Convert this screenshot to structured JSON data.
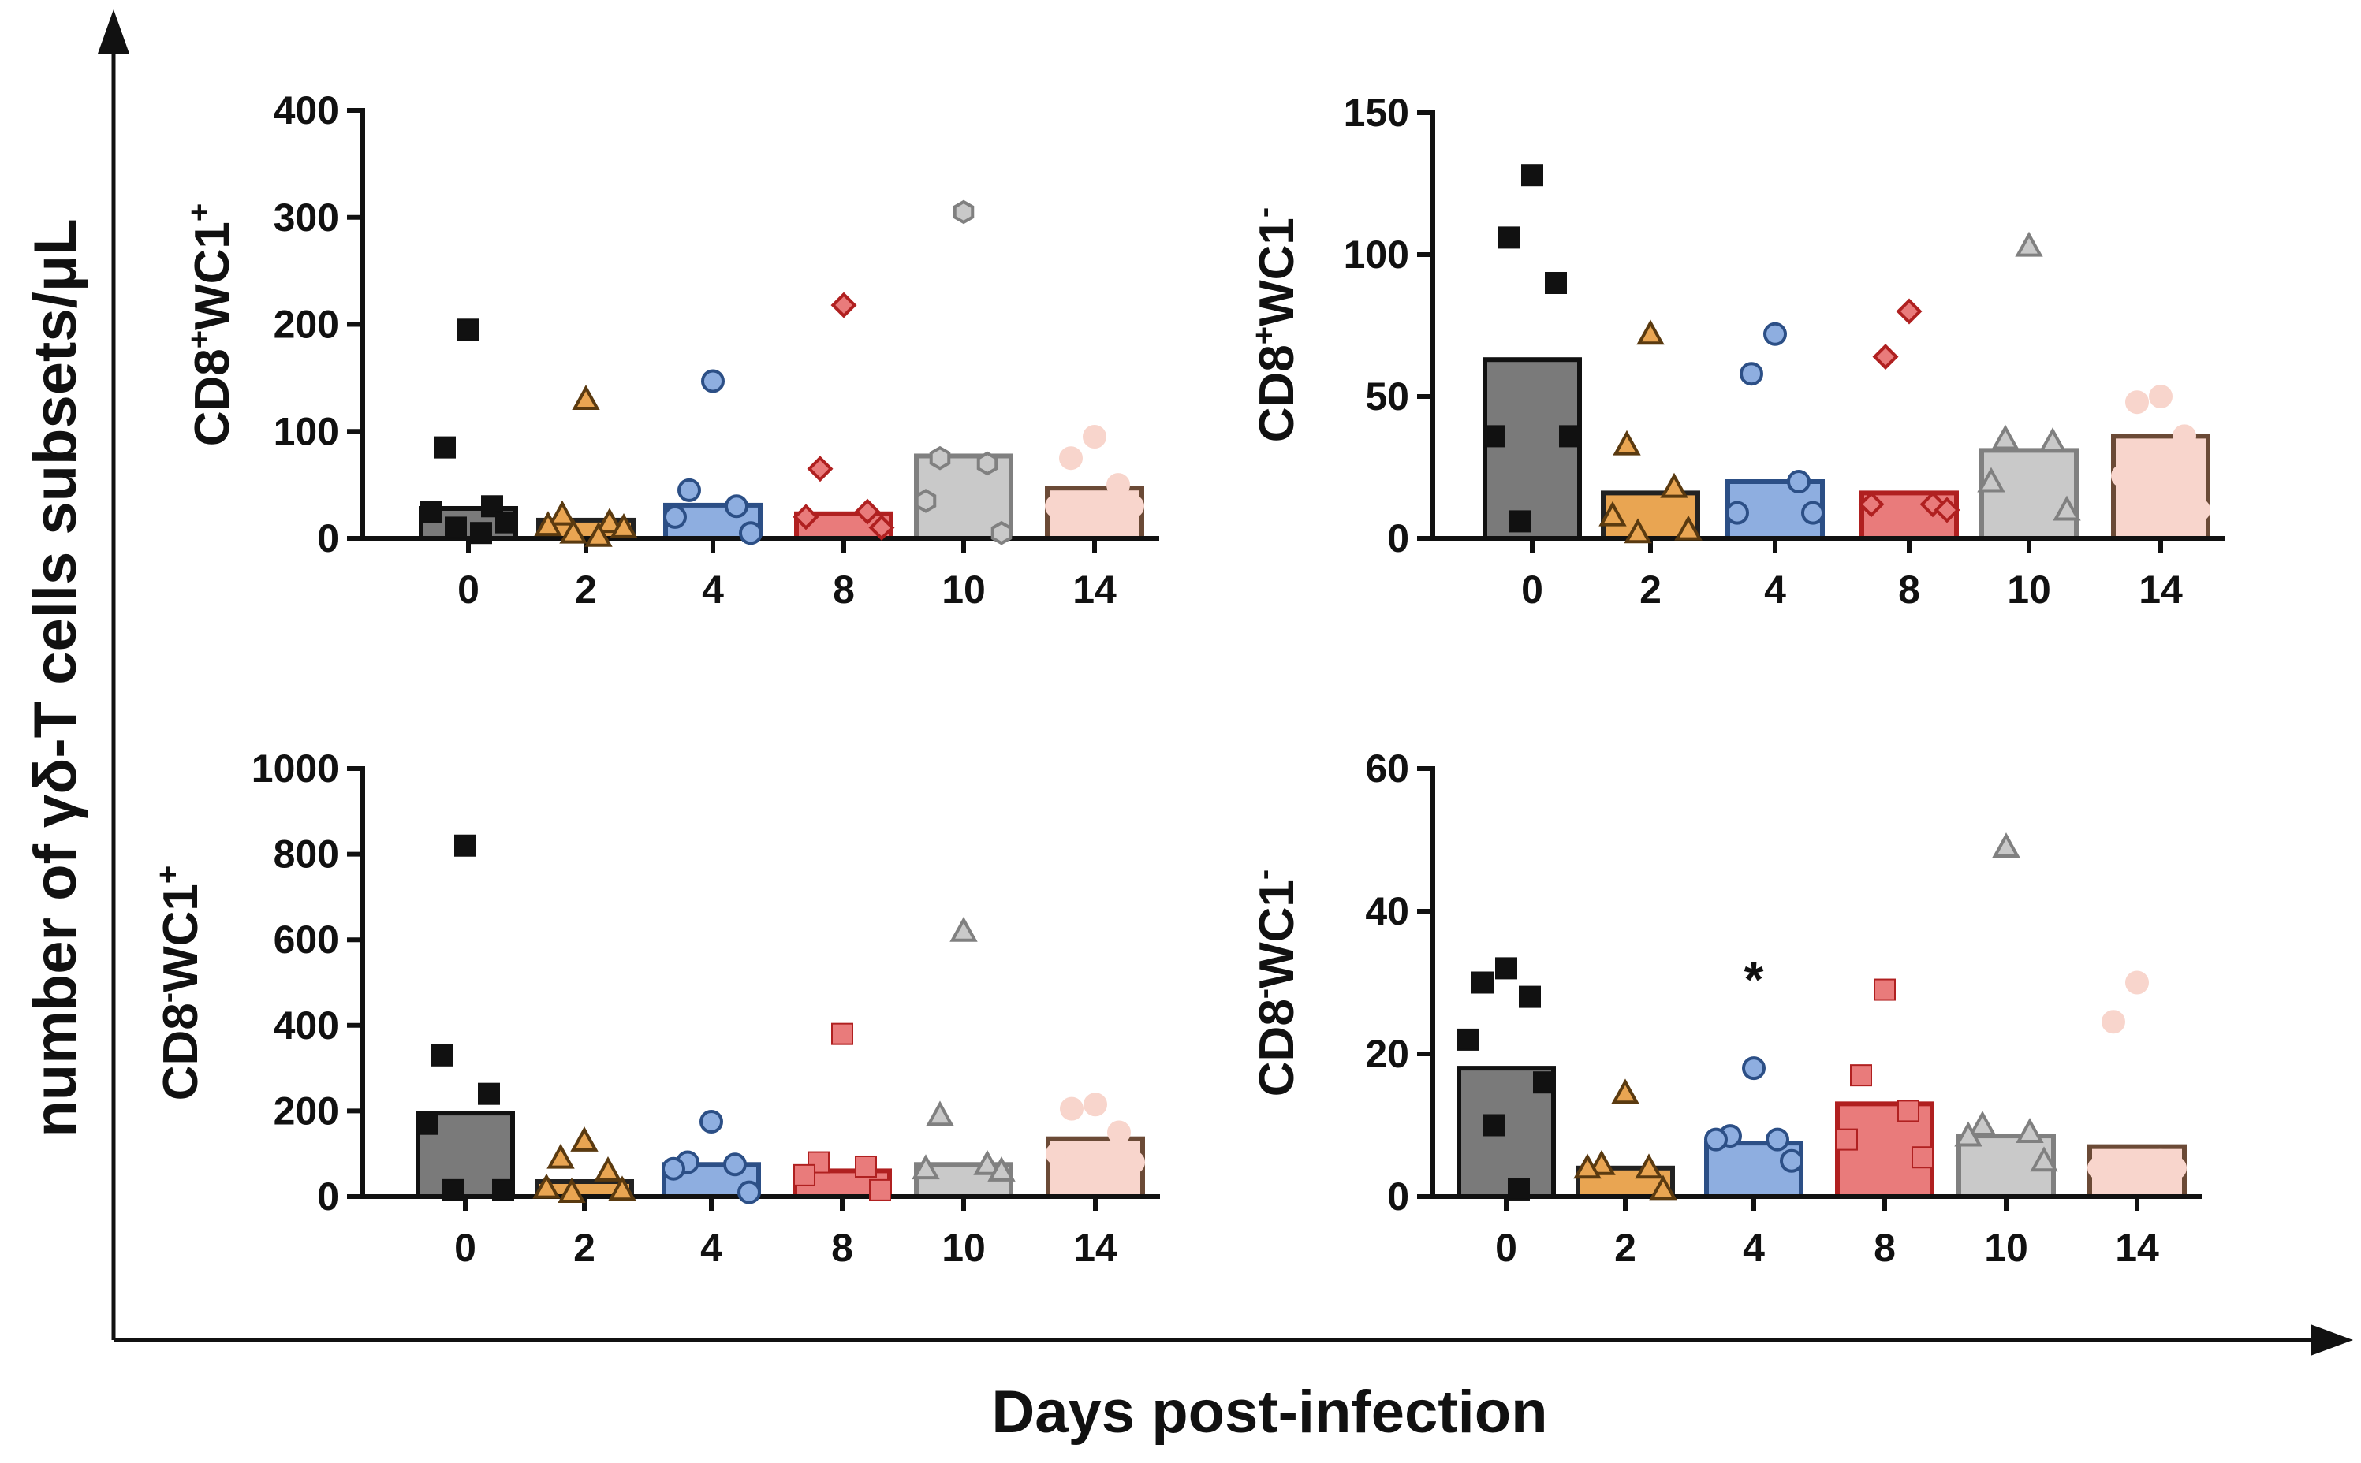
{
  "figure": {
    "y_axis_label": "number of γδ-T cells subsets/μL",
    "x_axis_label": "Days post-infection"
  },
  "group_styles": [
    {
      "day": "0",
      "marker": "square",
      "fill": "#111111",
      "stroke": "#111111",
      "bar_fill": "#7a7a7a",
      "bar_stroke": "#111111"
    },
    {
      "day": "2",
      "marker": "triangle",
      "fill": "#e9a552",
      "stroke": "#5a3a10",
      "bar_fill": "#e9a552",
      "bar_stroke": "#222222"
    },
    {
      "day": "4",
      "marker": "circle",
      "fill": "#8eaee0",
      "stroke": "#2c4f86",
      "bar_fill": "#8eaee0",
      "bar_stroke": "#2c4f86"
    },
    {
      "day": "8",
      "marker": "diamond",
      "fill": "#e97b7b",
      "stroke": "#b02020",
      "bar_fill": "#e97b7b",
      "bar_stroke": "#b02020"
    },
    {
      "day": "10",
      "marker": "hexagon",
      "fill": "#c9c9c9",
      "stroke": "#808080",
      "bar_fill": "#c9c9c9",
      "bar_stroke": "#808080"
    },
    {
      "day": "14",
      "marker": "circle",
      "fill": "#f8d5cc",
      "stroke": "#f8d5cc",
      "bar_fill": "#f8d5cc",
      "bar_stroke": "#6b4a36"
    }
  ],
  "chart_data": [
    {
      "type": "bar",
      "ylabel_base": "CD8",
      "ylabel_sup1": "+",
      "ylabel_mid": "WC1",
      "ylabel_sup2": "+",
      "categories": [
        "0",
        "2",
        "4",
        "8",
        "10",
        "14"
      ],
      "ylim": [
        0,
        400
      ],
      "yticks": [
        0,
        100,
        200,
        300,
        400
      ],
      "means": [
        28,
        17,
        31,
        23,
        77,
        47
      ],
      "points": [
        [
          195,
          85,
          30,
          25,
          15,
          10,
          5
        ],
        [
          130,
          22,
          15,
          12,
          10,
          5,
          2
        ],
        [
          147,
          45,
          30,
          20,
          5
        ],
        [
          218,
          65,
          25,
          20,
          10
        ],
        [
          305,
          75,
          70,
          35,
          5
        ],
        [
          95,
          75,
          50,
          30,
          30
        ]
      ],
      "markers": [
        "square",
        "triangle",
        "circle",
        "diamond",
        "hexagon",
        "circle"
      ],
      "annotations": []
    },
    {
      "type": "bar",
      "ylabel_base": "CD8",
      "ylabel_sup1": "+",
      "ylabel_mid": "WC1",
      "ylabel_sup2": "-",
      "categories": [
        "0",
        "2",
        "4",
        "8",
        "10",
        "14"
      ],
      "ylim": [
        0,
        150
      ],
      "yticks": [
        0,
        50,
        100,
        150
      ],
      "means": [
        63,
        16,
        20,
        16,
        31,
        36
      ],
      "points": [
        [
          128,
          106,
          90,
          36,
          36,
          6
        ],
        [
          72,
          33,
          18,
          8,
          3,
          2
        ],
        [
          72,
          58,
          20,
          9,
          9
        ],
        [
          80,
          64,
          12,
          12,
          10
        ],
        [
          103,
          35,
          34,
          20,
          10
        ],
        [
          50,
          48,
          36,
          22,
          10
        ]
      ],
      "markers": [
        "square",
        "triangle",
        "circle",
        "diamond",
        "triangle",
        "circle"
      ],
      "annotations": []
    },
    {
      "type": "bar",
      "ylabel_base": "CD8",
      "ylabel_sup1": "-",
      "ylabel_mid": "WC1",
      "ylabel_sup2": "+",
      "categories": [
        "0",
        "2",
        "4",
        "8",
        "10",
        "14"
      ],
      "ylim": [
        0,
        1000
      ],
      "yticks": [
        0,
        200,
        400,
        600,
        800,
        1000
      ],
      "means": [
        195,
        35,
        75,
        60,
        75,
        135
      ],
      "points": [
        [
          820,
          330,
          240,
          170,
          15,
          15
        ],
        [
          130,
          90,
          60,
          20,
          15,
          10
        ],
        [
          175,
          80,
          75,
          65,
          10
        ],
        [
          380,
          80,
          70,
          50,
          15
        ],
        [
          620,
          190,
          75,
          65,
          60
        ],
        [
          215,
          205,
          150,
          100,
          80
        ]
      ],
      "markers": [
        "square",
        "triangle",
        "circle",
        "square",
        "triangle",
        "circle"
      ],
      "annotations": []
    },
    {
      "type": "bar",
      "ylabel_base": "CD8",
      "ylabel_sup1": "-",
      "ylabel_mid": "WC1",
      "ylabel_sup2": "-",
      "categories": [
        "0",
        "2",
        "4",
        "8",
        "10",
        "14"
      ],
      "ylim": [
        0,
        60
      ],
      "yticks": [
        0,
        20,
        40,
        60
      ],
      "means": [
        18,
        4,
        7.5,
        13,
        8.5,
        7
      ],
      "points": [
        [
          32,
          30,
          28,
          22,
          16,
          10,
          1
        ],
        [
          14.5,
          4.5,
          4,
          4,
          1
        ],
        [
          18,
          8.5,
          8,
          8,
          5
        ],
        [
          29,
          17,
          12,
          8,
          5.5
        ],
        [
          49,
          10,
          9,
          8.5,
          5
        ],
        [
          30,
          24.5,
          5,
          4,
          4
        ]
      ],
      "markers": [
        "square",
        "triangle",
        "circle",
        "square",
        "triangle",
        "circle"
      ],
      "annotations": [
        {
          "category": "4",
          "value": 32,
          "text": "*"
        }
      ]
    }
  ]
}
